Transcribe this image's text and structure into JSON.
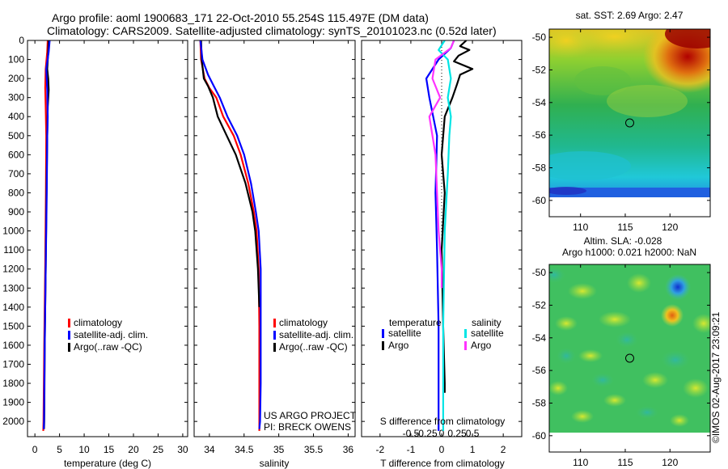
{
  "page": {
    "title_line1": "Argo profile: aoml 1900683_171 22-Oct-2010 55.254S 115.497E (DM data)",
    "title_line2": "Climatology: CARS2009. Satellite-adjusted climatology: synTS_20101023.nc (0.52d later)",
    "credit": "US ARGO PROJECT",
    "pi": "PI: BRECK OWENS",
    "stamp": "©IMOS 02-Aug-2017 23:09:21"
  },
  "colors": {
    "climatology": "#ff0000",
    "satellite": "#0000ff",
    "argo": "#000000",
    "satellite_salinity": "#00e5e5",
    "argo_salinity": "#ff33ff"
  },
  "chart_data": [
    {
      "type": "line",
      "id": "temperature",
      "xlabel": "temperature (deg C)",
      "xlim": [
        -1.5,
        31
      ],
      "ylim": [
        2080,
        0
      ],
      "xticks": [
        0,
        5,
        10,
        15,
        20,
        25,
        30
      ],
      "yticks": [
        0,
        100,
        200,
        300,
        400,
        500,
        600,
        700,
        800,
        900,
        1000,
        1100,
        1200,
        1300,
        1400,
        1500,
        1600,
        1700,
        1800,
        1900,
        2000
      ],
      "legend": [
        "climatology",
        "satellite-adj. clim.",
        "Argo(..raw -QC)"
      ],
      "series": [
        {
          "name": "climatology",
          "color": "#ff0000",
          "points": [
            [
              2.6,
              0
            ],
            [
              2.5,
              60
            ],
            [
              2.2,
              150
            ],
            [
              2.1,
              250
            ],
            [
              2.2,
              350
            ],
            [
              2.3,
              500
            ],
            [
              2.25,
              800
            ],
            [
              2.1,
              1200
            ],
            [
              1.9,
              1600
            ],
            [
              1.75,
              2000
            ],
            [
              1.7,
              2050
            ]
          ]
        },
        {
          "name": "Argo(..raw -QC)",
          "color": "#000000",
          "points": [
            [
              2.8,
              0
            ],
            [
              2.7,
              60
            ],
            [
              2.5,
              150
            ],
            [
              2.7,
              200
            ],
            [
              2.8,
              260
            ],
            [
              2.6,
              350
            ],
            [
              2.5,
              500
            ],
            [
              2.35,
              800
            ],
            [
              2.2,
              1200
            ],
            [
              2.0,
              1600
            ],
            [
              1.9,
              2000
            ],
            [
              1.85,
              2040
            ]
          ]
        },
        {
          "name": "satellite-adj. clim.",
          "color": "#0000ff",
          "points": [
            [
              3.0,
              0
            ],
            [
              2.8,
              60
            ],
            [
              2.3,
              150
            ],
            [
              2.5,
              260
            ],
            [
              2.6,
              400
            ],
            [
              2.5,
              500
            ],
            [
              2.4,
              800
            ],
            [
              2.2,
              1200
            ],
            [
              2.0,
              1600
            ],
            [
              1.85,
              2000
            ],
            [
              1.8,
              2040
            ]
          ]
        }
      ]
    },
    {
      "type": "line",
      "id": "salinity",
      "xlabel": "salinity",
      "xlim": [
        33.78,
        36.1
      ],
      "ylim": [
        2080,
        0
      ],
      "xticks": [
        34,
        34.5,
        35,
        35.5,
        36
      ],
      "xticklabels": [
        "34",
        "34.5",
        "35",
        "35.5",
        "36"
      ],
      "legend": [
        "climatology",
        "satellite-adj. clim.",
        "Argo(..raw -QC)"
      ],
      "series": [
        {
          "name": "climatology",
          "color": "#ff0000",
          "points": [
            [
              33.87,
              0
            ],
            [
              33.88,
              100
            ],
            [
              33.93,
              200
            ],
            [
              34.0,
              250
            ],
            [
              34.1,
              300
            ],
            [
              34.2,
              400
            ],
            [
              34.35,
              500
            ],
            [
              34.45,
              600
            ],
            [
              34.56,
              750
            ],
            [
              34.64,
              900
            ],
            [
              34.68,
              1000
            ],
            [
              34.71,
              1200
            ],
            [
              34.72,
              1500
            ],
            [
              34.72,
              1800
            ],
            [
              34.72,
              2050
            ]
          ]
        },
        {
          "name": "Argo(..raw -QC)",
          "color": "#000000",
          "points": [
            [
              33.88,
              0
            ],
            [
              33.89,
              100
            ],
            [
              33.92,
              200
            ],
            [
              33.98,
              240
            ],
            [
              34.05,
              300
            ],
            [
              34.12,
              400
            ],
            [
              34.25,
              500
            ],
            [
              34.38,
              600
            ],
            [
              34.52,
              750
            ],
            [
              34.62,
              900
            ],
            [
              34.66,
              1000
            ],
            [
              34.7,
              1200
            ],
            [
              34.72,
              1400
            ]
          ]
        },
        {
          "name": "satellite-adj. clim.",
          "color": "#0000ff",
          "points": [
            [
              33.87,
              0
            ],
            [
              33.9,
              100
            ],
            [
              33.98,
              180
            ],
            [
              34.05,
              230
            ],
            [
              34.15,
              300
            ],
            [
              34.26,
              400
            ],
            [
              34.4,
              500
            ],
            [
              34.5,
              600
            ],
            [
              34.6,
              750
            ],
            [
              34.67,
              900
            ],
            [
              34.71,
              1000
            ],
            [
              34.74,
              1200
            ],
            [
              34.74,
              1500
            ],
            [
              34.74,
              1800
            ],
            [
              34.73,
              2000
            ],
            [
              34.72,
              2040
            ]
          ]
        }
      ]
    },
    {
      "type": "line",
      "id": "difference",
      "xlabel": "T difference from climatology",
      "toplabel": "S difference from climatology",
      "xlim": [
        -2.6,
        2.6
      ],
      "ylim": [
        2080,
        0
      ],
      "xticks": [
        -2,
        -1,
        0,
        1,
        2
      ],
      "xticklabels": [
        "-2",
        "-1",
        "0",
        "1",
        "2"
      ],
      "sticks": [
        -0.5,
        -0.25,
        0,
        0.25,
        0.5
      ],
      "sticklabels": [
        "-0.5",
        "-0.25",
        "0",
        "0.25",
        "0.5"
      ],
      "legend_temperature": {
        "title": "temperature",
        "items": [
          "satellite",
          "Argo"
        ]
      },
      "legend_salinity": {
        "title": "salinity",
        "items": [
          "satellite",
          "Argo"
        ]
      },
      "series": [
        {
          "name": "temperature satellite",
          "color": "#0000ff",
          "points": [
            [
              0.4,
              0
            ],
            [
              0.3,
              40
            ],
            [
              -0.1,
              100
            ],
            [
              -0.5,
              200
            ],
            [
              -0.4,
              300
            ],
            [
              -0.15,
              500
            ],
            [
              -0.2,
              800
            ],
            [
              -0.15,
              1100
            ],
            [
              -0.1,
              1500
            ],
            [
              -0.1,
              2050
            ]
          ]
        },
        {
          "name": "temperature Argo",
          "color": "#000000",
          "points": [
            [
              0.8,
              0
            ],
            [
              0.6,
              30
            ],
            [
              0.9,
              50
            ],
            [
              0.55,
              80
            ],
            [
              0.4,
              110
            ],
            [
              1.0,
              150
            ],
            [
              0.6,
              180
            ],
            [
              0.5,
              230
            ],
            [
              0.35,
              300
            ],
            [
              0.1,
              400
            ],
            [
              0.0,
              600
            ],
            [
              0.1,
              800
            ],
            [
              0.0,
              1100
            ],
            [
              0.05,
              1500
            ],
            [
              0.1,
              1800
            ],
            [
              0.1,
              1850
            ]
          ]
        },
        {
          "name": "salinity satellite",
          "color": "#00e5e5",
          "points": [
            [
              0.1,
              0
            ],
            [
              -0.1,
              50
            ],
            [
              0.2,
              100
            ],
            [
              0.3,
              200
            ],
            [
              0.2,
              300
            ],
            [
              0.3,
              400
            ],
            [
              0.25,
              500
            ],
            [
              0.2,
              700
            ],
            [
              0.1,
              1000
            ],
            [
              0.05,
              1500
            ],
            [
              0.05,
              2050
            ]
          ]
        },
        {
          "name": "salinity Argo",
          "color": "#ff33ff",
          "points": [
            [
              0.4,
              0
            ],
            [
              0.3,
              40
            ],
            [
              -0.2,
              100
            ],
            [
              -0.3,
              200
            ],
            [
              -0.05,
              300
            ],
            [
              -0.4,
              400
            ],
            [
              -0.2,
              600
            ],
            [
              -0.15,
              800
            ],
            [
              -0.1,
              1000
            ],
            [
              0.0,
              1200
            ],
            [
              0.0,
              1300
            ]
          ]
        }
      ]
    },
    {
      "type": "heatmap",
      "id": "sst",
      "title": "sat. SST: 2.69 Argo: 2.47",
      "xlim": [
        106.5,
        124.5
      ],
      "ylim": [
        -61,
        -49.5
      ],
      "xticks": [
        110,
        115,
        120
      ],
      "yticks": [
        -50,
        -52,
        -54,
        -56,
        -58,
        -60
      ],
      "marker": [
        115.5,
        -55.25
      ]
    },
    {
      "type": "heatmap",
      "id": "sla",
      "title_line1": "Altim. SLA: -0.028",
      "title_line2": "Argo h1000: 0.021 h2000: NaN",
      "xlim": [
        106.5,
        124.5
      ],
      "ylim": [
        -61,
        -49.5
      ],
      "xticks": [
        110,
        115,
        120
      ],
      "yticks": [
        -50,
        -52,
        -54,
        -56,
        -58,
        -60
      ],
      "marker": [
        115.5,
        -55.25
      ]
    }
  ]
}
